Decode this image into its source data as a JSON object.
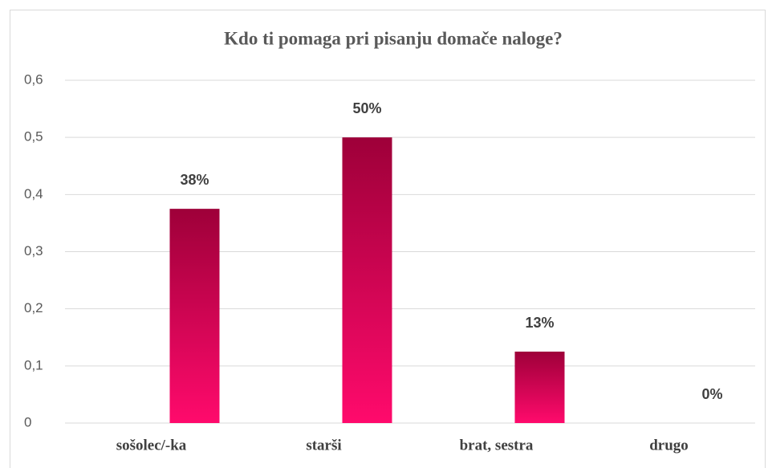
{
  "chart_data": {
    "type": "bar",
    "title": "Kdo ti pomaga pri pisanju domače naloge?",
    "categories": [
      "sošolec/-ka",
      "starši",
      "brat, sestra",
      "drugo"
    ],
    "values": [
      0.375,
      0.5,
      0.125,
      0
    ],
    "value_labels": [
      "38%",
      "50%",
      "13%",
      "0%"
    ],
    "gradient": [
      "#9e0039",
      "#ff0a6c"
    ],
    "ylim": [
      0,
      0.6
    ],
    "yticks": [
      0,
      {
        "value": 0.1,
        "label": "0,1"
      },
      {
        "value": 0.2,
        "label": "0,2"
      },
      {
        "value": 0.3,
        "label": "0,3"
      },
      {
        "value": 0.4,
        "label": "0,4"
      },
      {
        "value": 0.5,
        "label": "0,5"
      },
      {
        "value": 0.6,
        "label": "0,6"
      }
    ],
    "grid": true
  }
}
